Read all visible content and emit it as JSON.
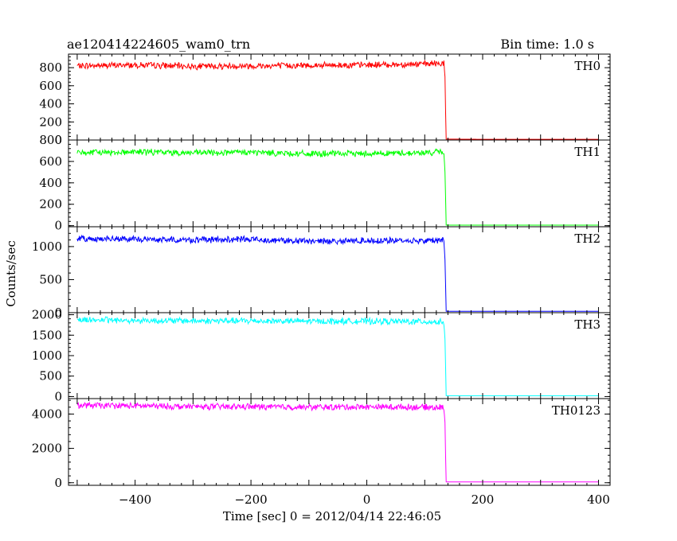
{
  "chart_data": {
    "type": "line",
    "title": "ae120414224605_wam0_trn",
    "subtitle": "Bin time: 1.0 s",
    "xlabel": "Time [sec] 0 = 2012/04/14 22:46:05",
    "ylabel": "Counts/sec",
    "xlim": [
      -515,
      420
    ],
    "x_ticks": [
      -400,
      -200,
      0,
      200,
      400
    ],
    "grid": false,
    "panels": [
      {
        "name": "TH0",
        "color": "#ff0000",
        "ylim": [
          0,
          950
        ],
        "y_ticks": [
          0,
          200,
          400,
          600,
          800
        ],
        "x": [
          -500,
          -400,
          -300,
          -200,
          -100,
          0,
          100,
          133,
          135,
          136,
          137,
          200,
          300,
          400
        ],
        "y": [
          820,
          830,
          815,
          820,
          825,
          830,
          840,
          850,
          700,
          300,
          10,
          8,
          8,
          8
        ]
      },
      {
        "name": "TH1",
        "color": "#00ff00",
        "ylim": [
          -10,
          800
        ],
        "y_ticks": [
          0,
          200,
          400,
          600,
          800
        ],
        "x": [
          -500,
          -400,
          -300,
          -200,
          -100,
          0,
          100,
          133,
          135,
          136,
          137,
          200,
          300,
          400
        ],
        "y": [
          680,
          690,
          680,
          685,
          670,
          675,
          680,
          690,
          500,
          250,
          5,
          5,
          5,
          5
        ]
      },
      {
        "name": "TH2",
        "color": "#0000ff",
        "ylim": [
          0,
          1300
        ],
        "y_ticks": [
          0,
          500,
          1000
        ],
        "x": [
          -500,
          -400,
          -300,
          -200,
          -100,
          0,
          100,
          133,
          135,
          136,
          137,
          200,
          300,
          400
        ],
        "y": [
          1120,
          1110,
          1100,
          1110,
          1080,
          1090,
          1090,
          1100,
          800,
          400,
          20,
          20,
          20,
          20
        ]
      },
      {
        "name": "TH3",
        "color": "#00ffff",
        "ylim": [
          -50,
          2050
        ],
        "y_ticks": [
          0,
          500,
          1000,
          1500,
          2000
        ],
        "x": [
          -500,
          -400,
          -300,
          -200,
          -100,
          0,
          100,
          133,
          135,
          136,
          137,
          200,
          300,
          400
        ],
        "y": [
          1880,
          1860,
          1850,
          1850,
          1840,
          1840,
          1830,
          1820,
          1400,
          700,
          20,
          20,
          20,
          20
        ]
      },
      {
        "name": "TH0123",
        "color": "#ff00ff",
        "ylim": [
          -150,
          4900
        ],
        "y_ticks": [
          0,
          2000,
          4000
        ],
        "x": [
          -500,
          -400,
          -300,
          -200,
          -100,
          0,
          100,
          133,
          135,
          136,
          137,
          200,
          300,
          400
        ],
        "y": [
          4500,
          4480,
          4430,
          4430,
          4400,
          4420,
          4400,
          4380,
          3500,
          1500,
          50,
          50,
          50,
          50
        ]
      }
    ]
  }
}
